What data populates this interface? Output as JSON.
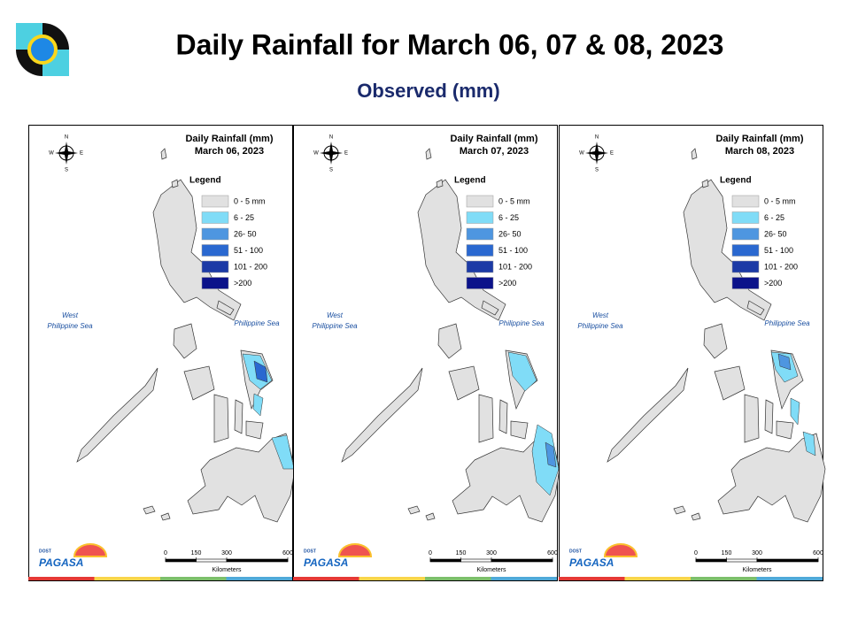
{
  "header": {
    "title": "Daily Rainfall for March 06, 07 & 08, 2023",
    "subtitle": "Observed (mm)"
  },
  "panels": [
    {
      "title": "Daily Rainfall (mm)",
      "date": "March 06, 2023"
    },
    {
      "title": "Daily Rainfall (mm)",
      "date": "March 07, 2023"
    },
    {
      "title": "Daily Rainfall (mm)",
      "date": "March 08, 2023"
    }
  ],
  "legend": {
    "title": "Legend",
    "items": [
      {
        "label": "0 - 5 mm",
        "color": "#e1e1e1"
      },
      {
        "label": "6 - 25",
        "color": "#80dcf7"
      },
      {
        "label": "26- 50",
        "color": "#4e96e0"
      },
      {
        "label": "51 - 100",
        "color": "#2a68d0"
      },
      {
        "label": "101 - 200",
        "color": "#1c3aa6"
      },
      {
        "label": ">200",
        "color": "#0b128a"
      }
    ]
  },
  "seas": {
    "west": [
      "West",
      "Philippine Sea"
    ],
    "east": "Philippine Sea"
  },
  "compass": {
    "n": "N",
    "e": "E",
    "s": "S",
    "w": "W"
  },
  "scale": {
    "ticks": [
      0,
      150,
      300,
      600
    ],
    "unit": "Kilometers"
  },
  "logo": {
    "agency": "PAGASA",
    "dept": "DOST"
  }
}
